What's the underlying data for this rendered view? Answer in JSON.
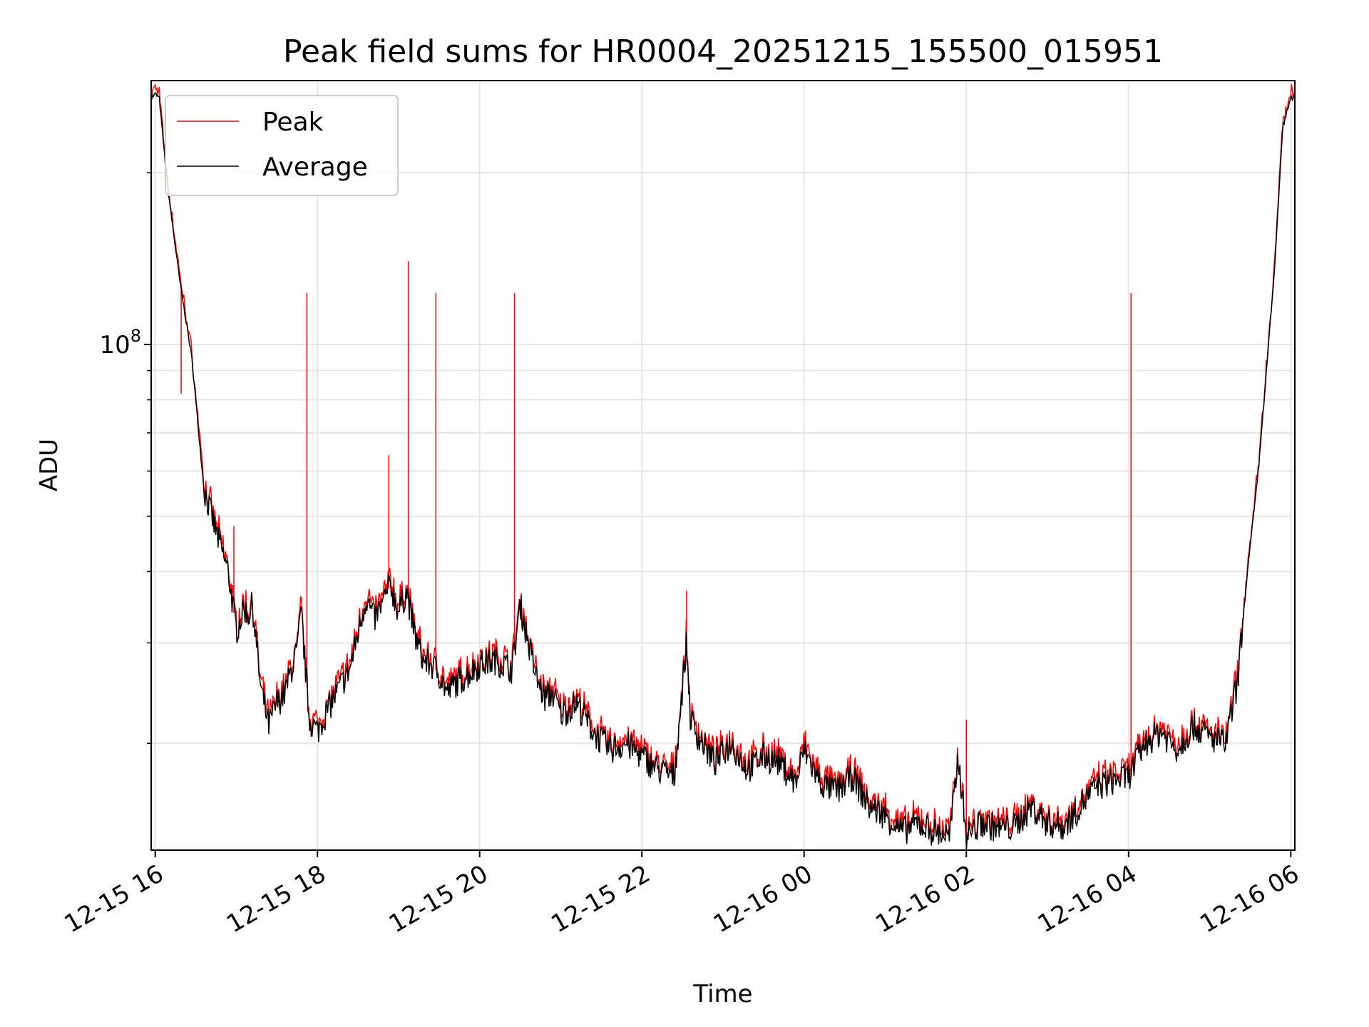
{
  "chart_data": {
    "type": "line",
    "title": "Peak field sums for HR0004_20251215_155500_015951",
    "xlabel": "Time",
    "ylabel": "ADU",
    "yscale": "log",
    "ylim": [
      13000000,
      290000000
    ],
    "xlim_hours": [
      -0.05,
      14.05
    ],
    "x_ticks": [
      {
        "hour": 0,
        "label": "12-15 16"
      },
      {
        "hour": 2,
        "label": "12-15 18"
      },
      {
        "hour": 4,
        "label": "12-15 20"
      },
      {
        "hour": 6,
        "label": "12-15 22"
      },
      {
        "hour": 8,
        "label": "12-16 00"
      },
      {
        "hour": 10,
        "label": "12-16 02"
      },
      {
        "hour": 12,
        "label": "12-16 04"
      },
      {
        "hour": 14,
        "label": "12-16 06"
      }
    ],
    "y_major_ticks": [
      {
        "value": 100000000,
        "label_base": "10",
        "label_exp": "8"
      }
    ],
    "y_minor_ticks": [
      20000000,
      30000000,
      40000000,
      50000000,
      60000000,
      70000000,
      80000000,
      90000000,
      200000000
    ],
    "grid": true,
    "legend": {
      "position": "top-left",
      "entries": [
        {
          "label": "Peak",
          "color": "#ff0000"
        },
        {
          "label": "Average",
          "color": "#000000"
        }
      ]
    },
    "x_unit": "hours since 2025-12-15 16:00",
    "series": [
      {
        "name": "Average",
        "color": "#000000",
        "x": [
          -0.05,
          0.0,
          0.05,
          0.15,
          0.3,
          0.45,
          0.6,
          0.75,
          0.9,
          1.0,
          1.1,
          1.15,
          1.2,
          1.3,
          1.4,
          1.5,
          1.6,
          1.68,
          1.75,
          1.8,
          1.9,
          2.0,
          2.1,
          2.2,
          2.4,
          2.6,
          2.7,
          2.8,
          2.9,
          3.0,
          3.1,
          3.2,
          3.3,
          3.4,
          3.5,
          3.6,
          3.7,
          3.8,
          4.0,
          4.2,
          4.4,
          4.5,
          4.6,
          4.7,
          4.8,
          4.9,
          5.0,
          5.2,
          5.4,
          5.6,
          5.8,
          6.0,
          6.2,
          6.4,
          6.55,
          6.6,
          6.7,
          6.9,
          7.1,
          7.3,
          7.5,
          7.7,
          7.9,
          8.0,
          8.2,
          8.4,
          8.6,
          8.8,
          9.0,
          9.2,
          9.4,
          9.6,
          9.8,
          9.9,
          10.0,
          10.2,
          10.4,
          10.6,
          10.8,
          11.0,
          11.2,
          11.4,
          11.6,
          11.8,
          12.0,
          12.2,
          12.4,
          12.6,
          12.8,
          13.0,
          13.2,
          13.35,
          13.45,
          13.6,
          13.8,
          13.9,
          14.0
        ],
        "y": [
          270000000,
          275000000,
          270000000,
          190000000,
          130000000,
          95000000,
          56000000,
          47000000,
          40000000,
          31500000,
          34500000,
          33500000,
          35000000,
          25000000,
          21500000,
          23500000,
          24500000,
          27000000,
          29000000,
          34000000,
          22000000,
          21000000,
          22500000,
          24000000,
          27000000,
          36000000,
          33000000,
          35000000,
          38000000,
          34000000,
          37000000,
          31000000,
          28000000,
          27500000,
          26500000,
          24500000,
          25500000,
          26000000,
          27500000,
          28000000,
          27000000,
          35000000,
          30000000,
          26000000,
          24000000,
          24500000,
          22500000,
          23500000,
          21000000,
          19500000,
          20000000,
          19000000,
          18000000,
          17500000,
          30000000,
          22000000,
          20500000,
          18500000,
          20000000,
          18000000,
          19000000,
          18500000,
          17000000,
          19500000,
          17000000,
          16500000,
          17500000,
          15500000,
          15000000,
          14000000,
          14500000,
          14000000,
          13800000,
          19000000,
          13800000,
          14500000,
          14200000,
          14300000,
          15500000,
          14500000,
          14300000,
          15500000,
          16800000,
          17200000,
          17500000,
          20000000,
          21000000,
          19500000,
          21500000,
          20500000,
          20000000,
          26000000,
          38000000,
          60000000,
          135000000,
          240000000,
          270000000
        ]
      },
      {
        "name": "Peak",
        "color": "#ff0000",
        "spikes": [
          {
            "x": 1.87,
            "y": 123000000
          },
          {
            "x": 3.12,
            "y": 140000000
          },
          {
            "x": 3.46,
            "y": 123000000
          },
          {
            "x": 4.43,
            "y": 123000000
          },
          {
            "x": 12.03,
            "y": 123000000
          },
          {
            "x": 2.88,
            "y": 64000000
          },
          {
            "x": 0.32,
            "y": 82000000
          },
          {
            "x": 0.97,
            "y": 48000000
          },
          {
            "x": 6.55,
            "y": 37000000
          },
          {
            "x": 10.0,
            "y": 22000000
          }
        ]
      }
    ]
  }
}
